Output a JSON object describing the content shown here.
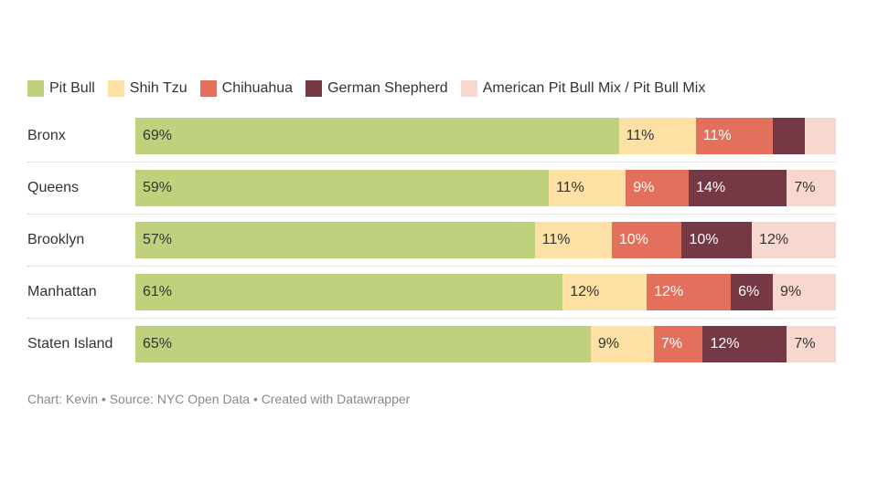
{
  "chart_data": {
    "type": "bar",
    "orientation": "horizontal",
    "stacked": true,
    "normalized": true,
    "categories": [
      "Bronx",
      "Queens",
      "Brooklyn",
      "Manhattan",
      "Staten Island"
    ],
    "series": [
      {
        "name": "Pit Bull",
        "color": "#c0d17e",
        "text_color": "#333333",
        "values": [
          69,
          59,
          57,
          61,
          65
        ],
        "labels": [
          "69%",
          "59%",
          "57%",
          "61%",
          "65%"
        ]
      },
      {
        "name": "Shih Tzu",
        "color": "#fde1a4",
        "text_color": "#333333",
        "values": [
          11,
          11,
          11,
          12,
          9
        ],
        "labels": [
          "11%",
          "11%",
          "11%",
          "12%",
          "9%"
        ]
      },
      {
        "name": "Chihuahua",
        "color": "#e3705d",
        "text_color": "#ffffff",
        "values": [
          11,
          9,
          10,
          12,
          7
        ],
        "labels": [
          "11%",
          "9%",
          "10%",
          "12%",
          "7%"
        ]
      },
      {
        "name": "German Shepherd",
        "color": "#753845",
        "text_color": "#ffffff",
        "values": [
          4.5,
          14,
          10,
          6,
          12
        ],
        "labels": [
          "",
          "14%",
          "10%",
          "6%",
          "12%"
        ]
      },
      {
        "name": "American Pit Bull Mix / Pit Bull Mix",
        "color": "#f8d8ce",
        "text_color": "#333333",
        "values": [
          4.5,
          7,
          12,
          9,
          7
        ],
        "labels": [
          "",
          "7%",
          "12%",
          "9%",
          "7%"
        ]
      }
    ],
    "legend_position": "top-left",
    "footer": "Chart: Kevin • Source: NYC Open Data • Created with Datawrapper"
  }
}
